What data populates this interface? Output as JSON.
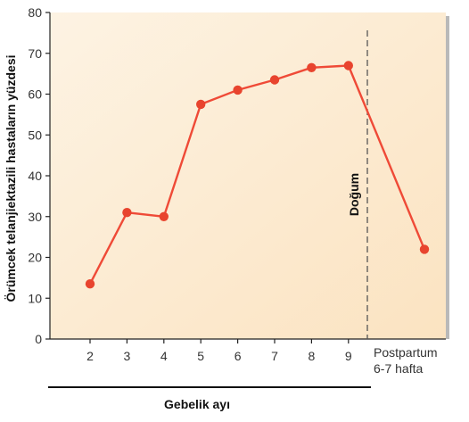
{
  "chart_data": {
    "type": "line",
    "title": "",
    "xlabel": "Gebelik ayı",
    "ylabel": "Örümcek telanjiektazili hastaların yüzdesi",
    "ylim": [
      0,
      80
    ],
    "yticks": [
      0,
      10,
      20,
      30,
      40,
      50,
      60,
      70,
      80
    ],
    "x_ticks": [
      "2",
      "3",
      "4",
      "5",
      "6",
      "7",
      "8",
      "9"
    ],
    "postpartum_label": [
      "Postpartum",
      "6-7 hafta"
    ],
    "annotation": "Doğum",
    "grid": false,
    "colors": {
      "line": "#ef4a37",
      "marker": "#e8442e",
      "plot_background": "#fdeed8",
      "divider": "#555555"
    },
    "series": [
      {
        "points": [
          {
            "x": "2",
            "y": 13.5
          },
          {
            "x": "3",
            "y": 31
          },
          {
            "x": "4",
            "y": 30
          },
          {
            "x": "5",
            "y": 57.5
          },
          {
            "x": "6",
            "y": 61
          },
          {
            "x": "7",
            "y": 63.5
          },
          {
            "x": "8",
            "y": 66.5
          },
          {
            "x": "9",
            "y": 67
          },
          {
            "x": "Postpartum 6-7 hafta",
            "y": 22
          }
        ]
      }
    ]
  }
}
